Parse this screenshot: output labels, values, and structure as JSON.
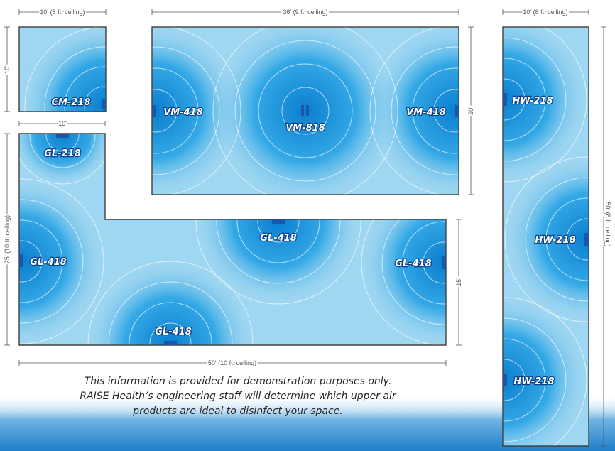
{
  "colors": {
    "room_fill": "#9fd6f1",
    "zone_core": "#0a7fd0",
    "zone_mid": "#35a9e6",
    "fixture": "#1b56a8",
    "label_outline": "#0c3f86",
    "footer_band": "#1f7ec9"
  },
  "rooms": {
    "cm_room": {
      "width_label": "10' (8 ft. ceiling)",
      "height_label": "10'",
      "units": [
        "CM-218"
      ]
    },
    "vm_room": {
      "width_label": "36' (9 ft. ceiling)",
      "height_label": "20'",
      "units": [
        "VM-418",
        "VM-818",
        "VM-418"
      ]
    },
    "gl_room": {
      "top_width_label": "10'",
      "height_label": "25' (10 ft. ceiling)",
      "bottom_width_label": "50' (10 ft. ceiling)",
      "right_height_label": "15'",
      "units": [
        "GL-218",
        "GL-418",
        "GL-418",
        "GL-418",
        "GL-418"
      ]
    },
    "hw_room": {
      "width_label": "10' (8 ft. ceiling)",
      "height_label": "50' (8 ft. ceiling)",
      "units": [
        "HW-218",
        "HW-218",
        "HW-218"
      ]
    }
  },
  "disclaimer": {
    "line1": "This information is provided for demonstration purposes only.",
    "line2": "RAISE Health’s engineering staff will determine which upper air",
    "line3": "products are ideal to disinfect your space."
  }
}
